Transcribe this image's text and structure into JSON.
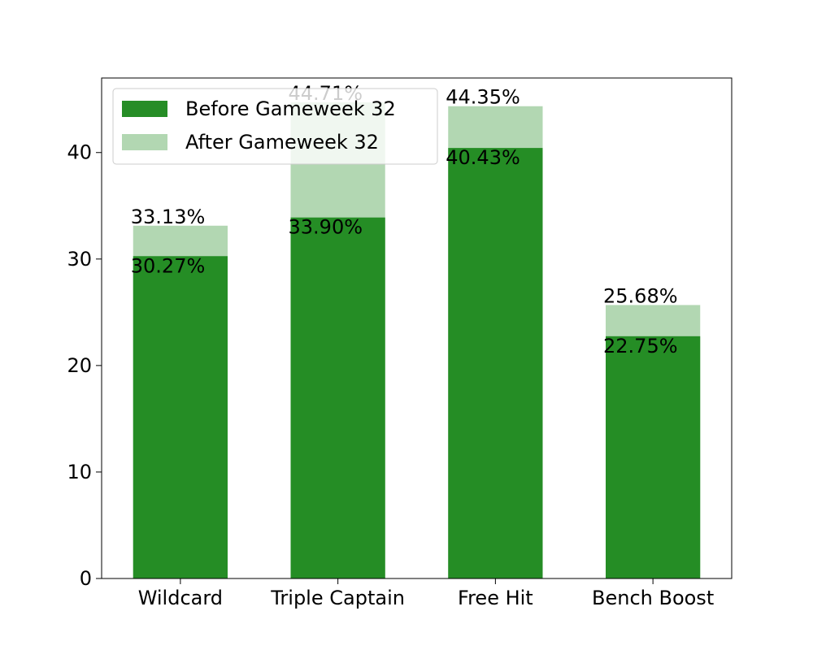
{
  "chart_data": {
    "type": "bar",
    "stacked_overlay": true,
    "categories": [
      "Wildcard",
      "Triple Captain",
      "Free Hit",
      "Bench Boost"
    ],
    "series": [
      {
        "name": "Before Gameweek 32",
        "values": [
          30.27,
          33.9,
          40.43,
          22.75
        ],
        "labels": [
          "30.27%",
          "33.90%",
          "40.43%",
          "22.75%"
        ],
        "color": "#228B22",
        "opacity": 0.98
      },
      {
        "name": "After Gameweek 32",
        "values": [
          33.13,
          44.71,
          44.35,
          25.68
        ],
        "labels": [
          "33.13%",
          "44.71%",
          "44.35%",
          "25.68%"
        ],
        "color": "#228B22",
        "opacity": 0.35
      }
    ],
    "yticks": [
      "0",
      "10",
      "20",
      "30",
      "40"
    ],
    "ylim": [
      0,
      47
    ],
    "title": "",
    "xlabel": "",
    "ylabel": "",
    "grid": false,
    "legend_position": "top-left"
  }
}
